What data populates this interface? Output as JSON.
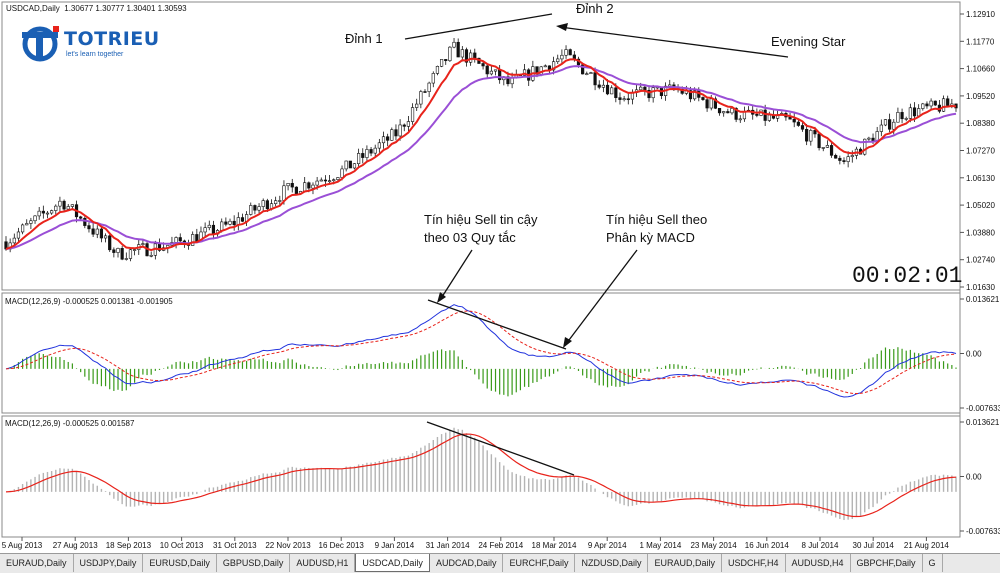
{
  "header": {
    "symbol_info": "USDCAD,Daily",
    "ohlc": "1.30677 1.30777 1.30401 1.30593"
  },
  "logo": {
    "text": "TOTRIEU",
    "tagline": "let's learn together",
    "color": "#1a5fb4"
  },
  "clock": "00:02:01",
  "annotations": {
    "peak1": "Đỉnh 1",
    "peak2": "Đỉnh 2",
    "evening_star": "Evening Star",
    "sell_signal_line1": "Tín hiệu Sell tin cậy",
    "sell_signal_line2": "theo 03 Quy tắc",
    "divergence_line1": "Tín hiệu Sell theo",
    "divergence_line2": "Phân kỳ MACD"
  },
  "indicators": {
    "macd1_label": "MACD(12,26,9) -0.000525 0.001381 -0.001905",
    "macd2_label": "MACD(12,26,9) -0.000525 0.001587"
  },
  "price_axis": [
    "1.12910",
    "1.11770",
    "1.10660",
    "1.09520",
    "1.08380",
    "1.07270",
    "1.06130",
    "1.05020",
    "1.03880",
    "1.02740",
    "1.01630"
  ],
  "macd1_axis": [
    "0.013621",
    "0.00",
    "-0.007633"
  ],
  "macd2_axis": [
    "0.013621",
    "0.00",
    "-0.007633"
  ],
  "date_axis": [
    "5 Aug 2013",
    "27 Aug 2013",
    "18 Sep 2013",
    "10 Oct 2013",
    "31 Oct 2013",
    "22 Nov 2013",
    "16 Dec 2013",
    "9 Jan 2014",
    "31 Jan 2014",
    "24 Feb 2014",
    "18 Mar 2014",
    "9 Apr 2014",
    "1 May 2014",
    "23 May 2014",
    "16 Jun 2014",
    "8 Jul 2014",
    "30 Jul 2014",
    "21 Aug 2014"
  ],
  "tabs": [
    "EURAUD,Daily",
    "USDJPY,Daily",
    "EURUSD,Daily",
    "GBPUSD,Daily",
    "AUDUSD,H1",
    "USDCAD,Daily",
    "AUDCAD,Daily",
    "EURCHF,Daily",
    "NZDUSD,Daily",
    "EURAUD,Daily",
    "USDCHF,H4",
    "AUDUSD,H4",
    "GBPCHF,Daily",
    "G"
  ],
  "active_tab": 5,
  "colors": {
    "ema_fast": "#e8231b",
    "ema_slow": "#9a4fd6",
    "macd_line": "#2233dd",
    "signal_line": "#e8231b",
    "histogram": "#3a9a1a",
    "histogram2": "#b4b4b4"
  },
  "chart_data": [
    {
      "type": "line",
      "title": "USDCAD,Daily",
      "series": [
        {
          "name": "USDCAD",
          "x": [
            "5 Aug 2013",
            "27 Aug 2013",
            "18 Sep 2013",
            "10 Oct 2013",
            "31 Oct 2013",
            "22 Nov 2013",
            "16 Dec 2013",
            "9 Jan 2014",
            "31 Jan 2014",
            "24 Feb 2014",
            "18 Mar 2014",
            "9 Apr 2014",
            "1 May 2014",
            "23 May 2014",
            "16 Jun 2014",
            "8 Jul 2014",
            "30 Jul 2014",
            "21 Aug 2014"
          ],
          "values": [
            1.035,
            1.052,
            1.03,
            1.034,
            1.042,
            1.056,
            1.064,
            1.08,
            1.115,
            1.1,
            1.112,
            1.095,
            1.098,
            1.088,
            1.085,
            1.068,
            1.088,
            1.092
          ]
        }
      ],
      "ylim": [
        1.0163,
        1.1291
      ]
    },
    {
      "type": "line",
      "title": "MACD(12,26,9) -0.000525 0.001381 -0.001905",
      "ylim": [
        -0.007633,
        0.013621
      ]
    },
    {
      "type": "bar",
      "title": "MACD(12,26,9) -0.000525 0.001587",
      "ylim": [
        -0.007633,
        0.013621
      ]
    }
  ]
}
